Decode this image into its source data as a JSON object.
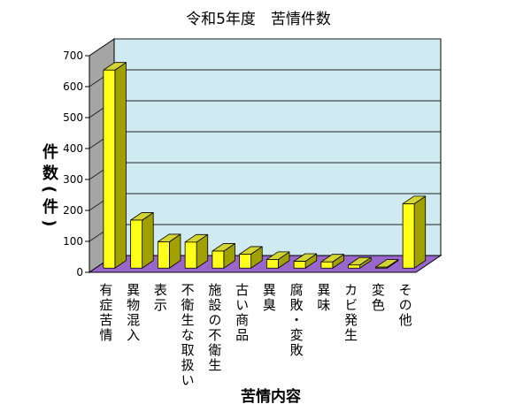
{
  "chart_data": {
    "type": "bar",
    "three_d": true,
    "title": "令和5年度　苦情件数",
    "xlabel": "苦情内容",
    "ylabel": "件数(件)",
    "categories": [
      "有症苦情",
      "異物混入",
      "表示",
      "不衛生な取扱い",
      "施設の不衛生",
      "古い商品",
      "異臭",
      "腐敗・変敗",
      "異味",
      "カビ発生",
      "変色",
      "その他"
    ],
    "values": [
      640,
      155,
      85,
      84,
      55,
      45,
      28,
      22,
      20,
      10,
      3,
      208
    ],
    "ylim": [
      0,
      700
    ],
    "yticks": [
      0,
      100,
      200,
      300,
      400,
      500,
      600,
      700
    ],
    "grid": true,
    "colors": {
      "bar_front": "#ffff1a",
      "bar_top": "#d4d433",
      "bar_side": "#a0a000",
      "back_wall": "#d0eaf2",
      "side_wall": "#a5a5a5",
      "floor": "#9966cc",
      "gridline": "#222222"
    }
  }
}
